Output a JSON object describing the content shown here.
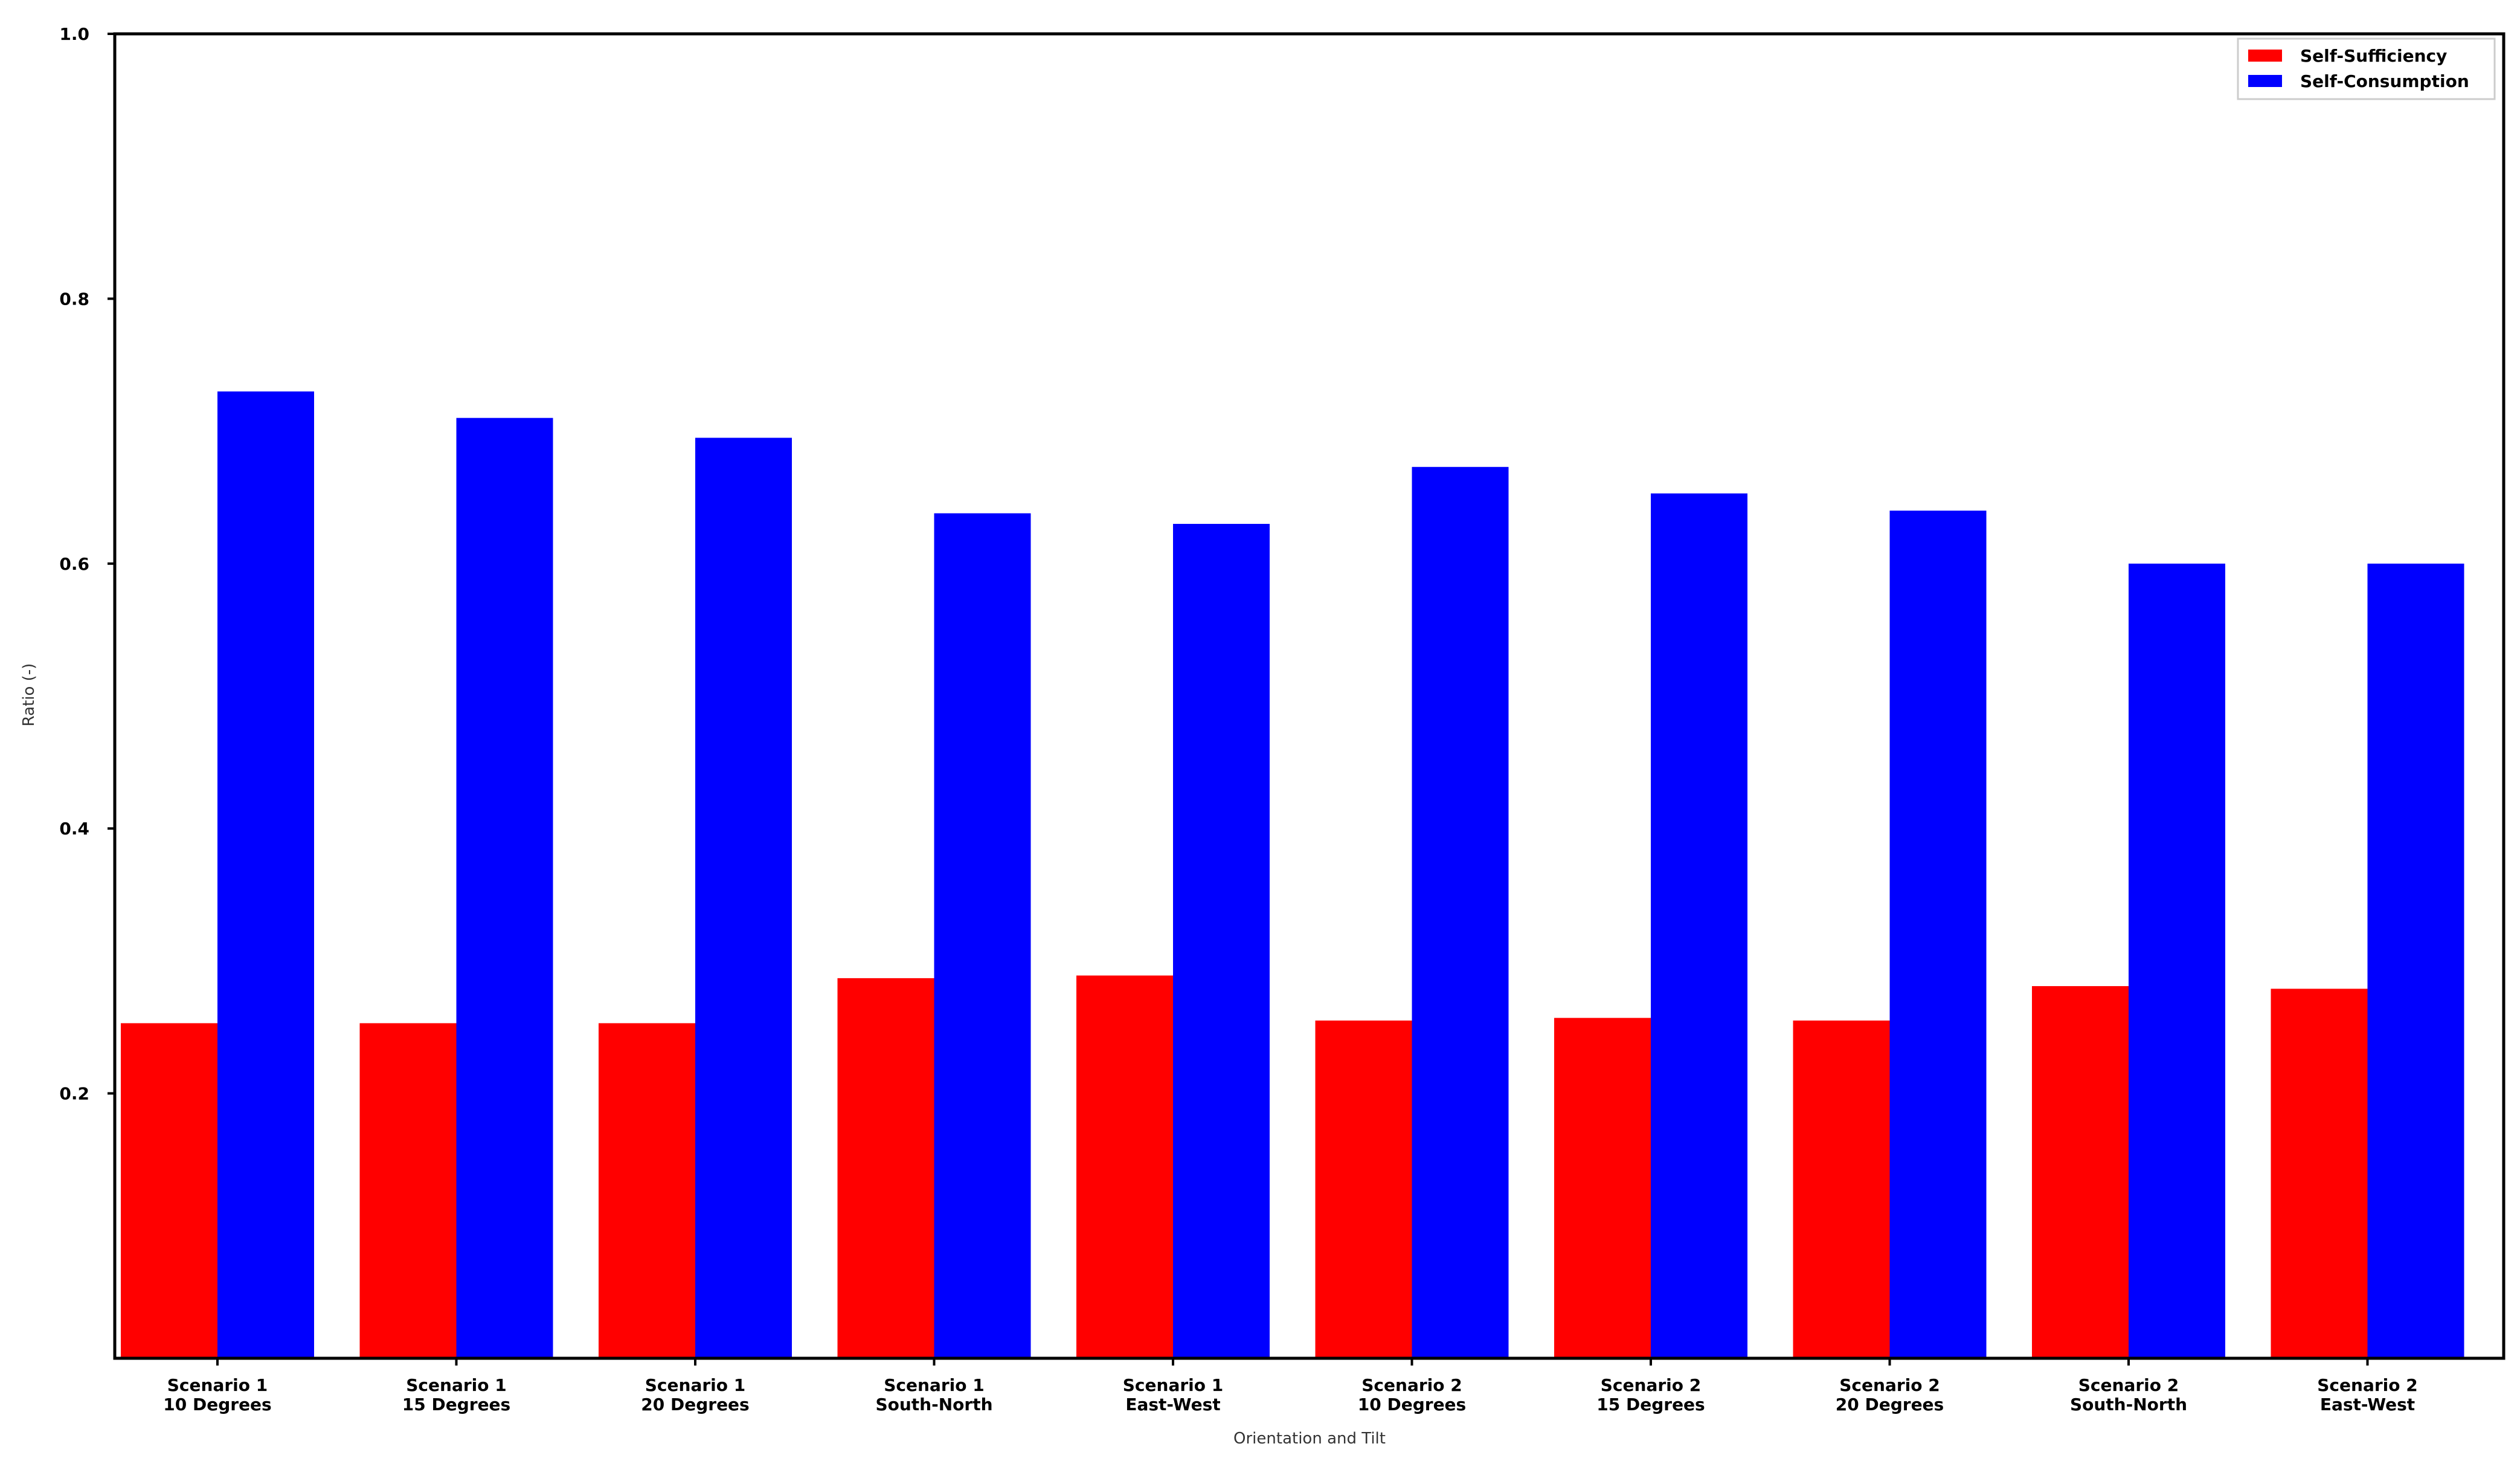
{
  "chart_data": {
    "type": "bar",
    "categories": [
      [
        "Scenario 1",
        "10 Degrees"
      ],
      [
        "Scenario 1",
        "15 Degrees"
      ],
      [
        "Scenario 1",
        "20 Degrees"
      ],
      [
        "Scenario 1",
        "South-North"
      ],
      [
        "Scenario 1",
        "East-West"
      ],
      [
        "Scenario 2",
        "10 Degrees"
      ],
      [
        "Scenario 2",
        "15 Degrees"
      ],
      [
        "Scenario 2",
        "20 Degrees"
      ],
      [
        "Scenario 2",
        "South-North"
      ],
      [
        "Scenario 2",
        "East-West"
      ]
    ],
    "series": [
      {
        "name": "Self-Sufficiency",
        "color": "#ff0000",
        "values": [
          0.253,
          0.253,
          0.253,
          0.287,
          0.289,
          0.255,
          0.257,
          0.255,
          0.281,
          0.279
        ]
      },
      {
        "name": "Self-Consumption",
        "color": "#0000ff",
        "values": [
          0.73,
          0.71,
          0.695,
          0.638,
          0.63,
          0.673,
          0.653,
          0.64,
          0.6,
          0.6
        ]
      }
    ],
    "xlabel": "Orientation and Tilt",
    "ylabel": "Ratio (-)",
    "ylim": [
      0,
      1.0
    ],
    "yticks": [
      "0.2",
      "0.4",
      "0.6",
      "0.8",
      "1.0"
    ],
    "legend": "top-right",
    "grid": false
  }
}
